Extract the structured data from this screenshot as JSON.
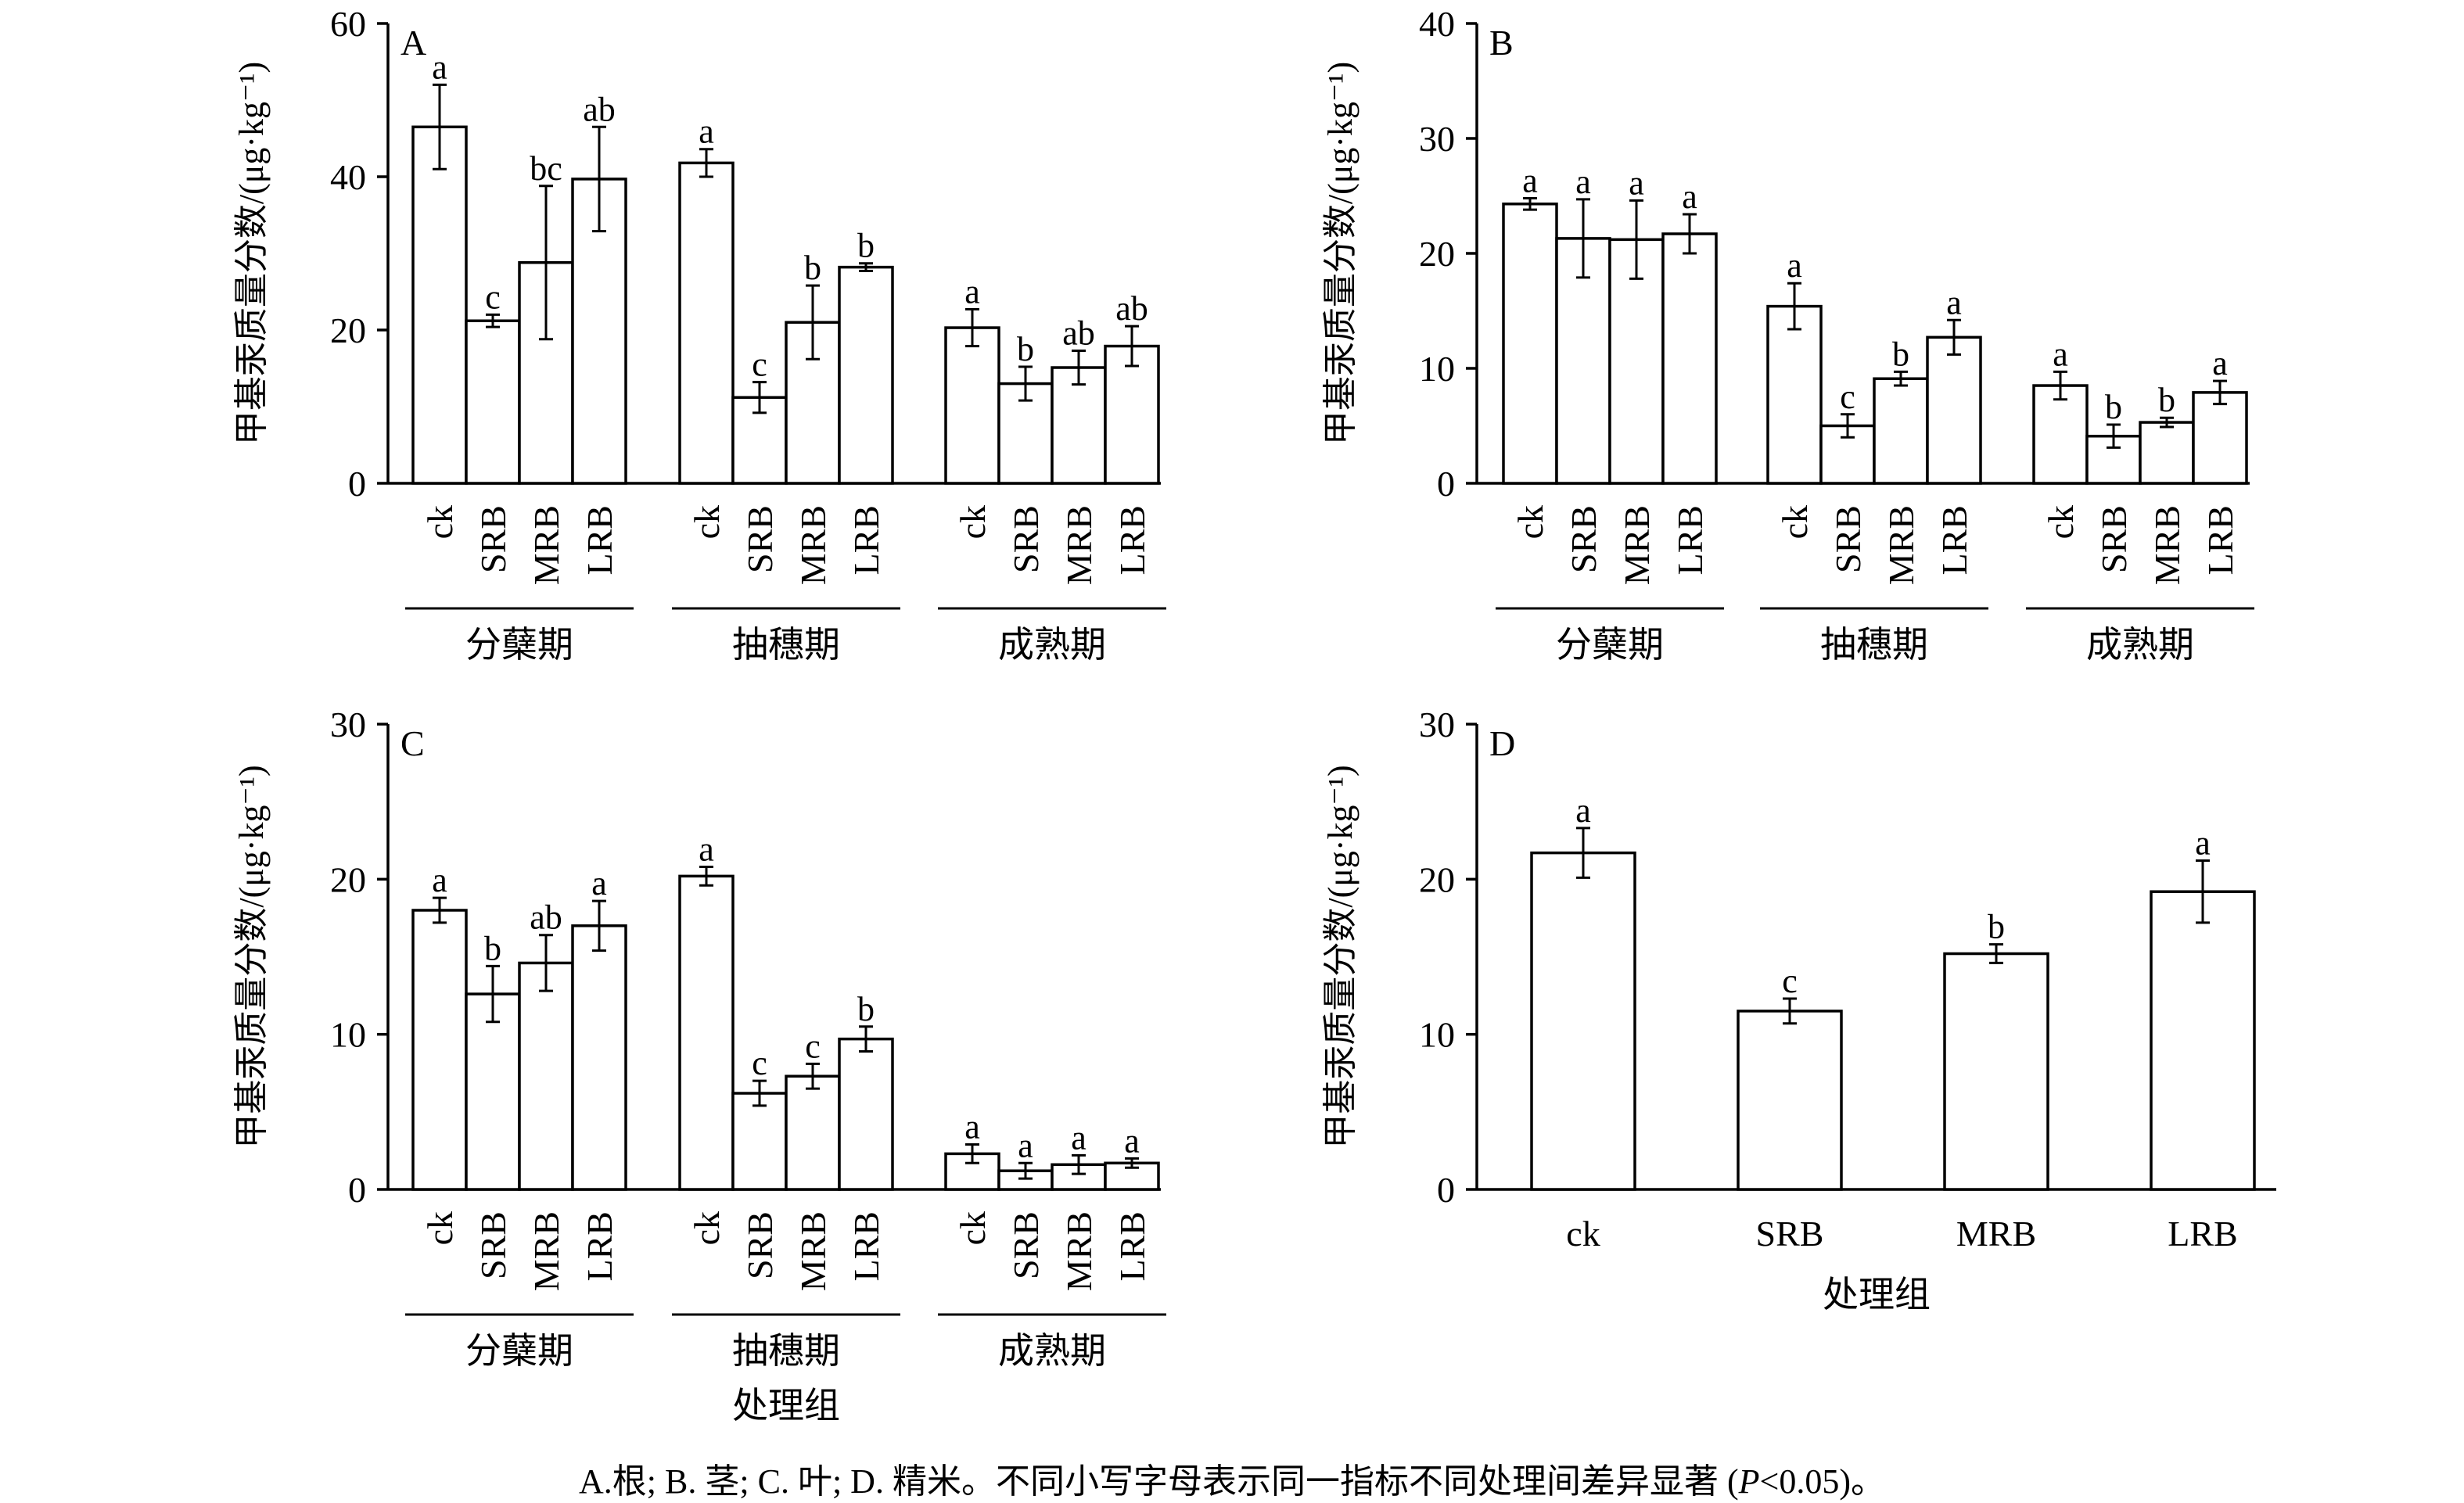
{
  "figure": {
    "caption": {
      "part1": "A.根; B. 茎; C. 叶; D. 精米。不同小写字母表示同一指标不同处理间差异显著 (",
      "p_symbol": "P",
      "part2": "<0.05)。"
    }
  },
  "chart_data": [
    {
      "panel": "A",
      "type": "bar",
      "ylabel": "甲基汞质量分数/(μg·kg⁻¹)",
      "ylim": [
        0,
        60
      ],
      "yticks": [
        0,
        20,
        40,
        60
      ],
      "xlabel": "",
      "groups": [
        {
          "name": "分蘖期",
          "categories": [
            "ck",
            "SRB",
            "MRB",
            "LRB"
          ],
          "values": [
            46.5,
            21.2,
            28.8,
            39.7
          ],
          "errors": [
            5.5,
            0.8,
            10,
            6.8
          ],
          "letters": [
            "a",
            "c",
            "bc",
            "ab"
          ]
        },
        {
          "name": "抽穗期",
          "categories": [
            "ck",
            "SRB",
            "MRB",
            "LRB"
          ],
          "values": [
            41.8,
            11.2,
            21.0,
            28.2
          ],
          "errors": [
            1.8,
            2,
            4.8,
            0.5
          ],
          "letters": [
            "a",
            "c",
            "b",
            "b"
          ]
        },
        {
          "name": "成熟期",
          "categories": [
            "ck",
            "SRB",
            "MRB",
            "LRB"
          ],
          "values": [
            20.3,
            13.0,
            15.1,
            17.9
          ],
          "errors": [
            2.4,
            2.2,
            2.2,
            2.6
          ],
          "letters": [
            "a",
            "b",
            "ab",
            "ab"
          ]
        }
      ]
    },
    {
      "panel": "B",
      "type": "bar",
      "ylabel": "甲基汞质量分数/(μg·kg⁻¹)",
      "ylim": [
        0,
        40
      ],
      "yticks": [
        0,
        10,
        20,
        30,
        40
      ],
      "xlabel": "",
      "groups": [
        {
          "name": "分蘖期",
          "categories": [
            "ck",
            "SRB",
            "MRB",
            "LRB"
          ],
          "values": [
            24.3,
            21.3,
            21.2,
            21.7
          ],
          "errors": [
            0.5,
            3.4,
            3.4,
            1.7
          ],
          "letters": [
            "a",
            "a",
            "a",
            "a"
          ]
        },
        {
          "name": "抽穗期",
          "categories": [
            "ck",
            "SRB",
            "MRB",
            "LRB"
          ],
          "values": [
            15.4,
            5.0,
            9.1,
            12.7
          ],
          "errors": [
            2.0,
            1.0,
            0.6,
            1.5
          ],
          "letters": [
            "a",
            "c",
            "b",
            "a"
          ]
        },
        {
          "name": "成熟期",
          "categories": [
            "ck",
            "SRB",
            "MRB",
            "LRB"
          ],
          "values": [
            8.5,
            4.1,
            5.3,
            7.9
          ],
          "errors": [
            1.2,
            1.0,
            0.4,
            1.0
          ],
          "letters": [
            "a",
            "b",
            "b",
            "a"
          ]
        }
      ]
    },
    {
      "panel": "C",
      "type": "bar",
      "ylabel": "甲基汞质量分数/(μg·kg⁻¹)",
      "ylim": [
        0,
        30
      ],
      "yticks": [
        0,
        10,
        20,
        30
      ],
      "xlabel": "处理组",
      "groups": [
        {
          "name": "分蘖期",
          "categories": [
            "ck",
            "SRB",
            "MRB",
            "LRB"
          ],
          "values": [
            18.0,
            12.6,
            14.6,
            17.0
          ],
          "errors": [
            0.8,
            1.8,
            1.8,
            1.6
          ],
          "letters": [
            "a",
            "b",
            "ab",
            "a"
          ]
        },
        {
          "name": "抽穗期",
          "categories": [
            "ck",
            "SRB",
            "MRB",
            "LRB"
          ],
          "values": [
            20.2,
            6.2,
            7.3,
            9.7
          ],
          "errors": [
            0.6,
            0.8,
            0.8,
            0.8
          ],
          "letters": [
            "a",
            "c",
            "c",
            "b"
          ]
        },
        {
          "name": "成熟期",
          "categories": [
            "ck",
            "SRB",
            "MRB",
            "LRB"
          ],
          "values": [
            2.3,
            1.2,
            1.6,
            1.7
          ],
          "errors": [
            0.6,
            0.5,
            0.6,
            0.3
          ],
          "letters": [
            "a",
            "a",
            "a",
            "a"
          ]
        }
      ]
    },
    {
      "panel": "D",
      "type": "bar",
      "ylabel": "甲基汞质量分数/(μg·kg⁻¹)",
      "ylim": [
        0,
        30
      ],
      "yticks": [
        0,
        10,
        20,
        30
      ],
      "xlabel": "处理组",
      "categories": [
        "ck",
        "SRB",
        "MRB",
        "LRB"
      ],
      "values": [
        21.7,
        11.5,
        15.2,
        19.2
      ],
      "errors": [
        1.6,
        0.8,
        0.6,
        2.0
      ],
      "letters": [
        "a",
        "c",
        "b",
        "a"
      ]
    }
  ]
}
